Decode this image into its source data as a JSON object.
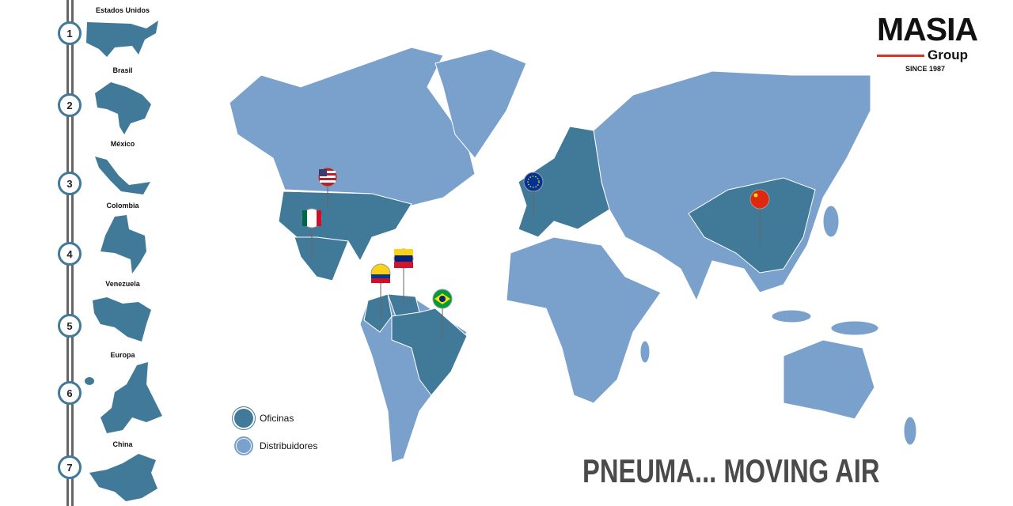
{
  "colors": {
    "oficinas": "#417a98",
    "distribuidores": "#7aa0cc",
    "accent": "#dd3322"
  },
  "sidebar": {
    "items": [
      {
        "number": "1",
        "label": "Estados Unidos"
      },
      {
        "number": "2",
        "label": "Brasil"
      },
      {
        "number": "3",
        "label": "México"
      },
      {
        "number": "4",
        "label": "Colombia"
      },
      {
        "number": "5",
        "label": "Venezuela"
      },
      {
        "number": "6",
        "label": "Europa"
      },
      {
        "number": "7",
        "label": "China"
      }
    ]
  },
  "legend": {
    "oficinas": "Oficinas",
    "distribuidores": "Distribuidores"
  },
  "logo": {
    "name": "MASIA",
    "sub": "Group",
    "since": "SINCE 1987"
  },
  "slogan": "PNEUMA... MOVING AIR",
  "pins": [
    "usa-flag",
    "mexico-flag",
    "venezuela-flag",
    "colombia-flag",
    "brazil-flag",
    "eu-flag",
    "china-flag"
  ]
}
